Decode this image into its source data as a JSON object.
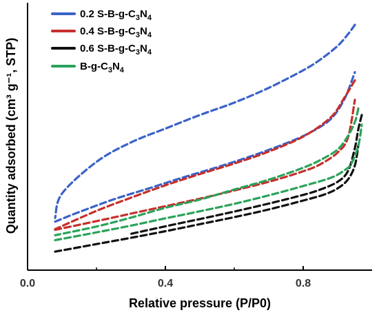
{
  "chart_data": {
    "type": "line",
    "title": "",
    "xlabel": "Relative pressure (P/P0)",
    "ylabel": "Quantity adsorbed (cm³ g⁻¹, STP)",
    "xlim": [
      0.0,
      1.0
    ],
    "ylim": [
      0,
      100
    ],
    "x_ticks": [
      "0.0",
      "0.4",
      "0.8"
    ],
    "y_ticks_labeled": false,
    "grid": false,
    "legend_position": "top-left",
    "line_style": "dashed",
    "series": [
      {
        "name": "0.2 S-B-g-C3N4",
        "label_parts": [
          "0.2 S-B-g-C",
          "3",
          "N",
          "4"
        ],
        "color": "#3a62c8",
        "adsorption": {
          "x": [
            0.08,
            0.15,
            0.25,
            0.35,
            0.45,
            0.55,
            0.65,
            0.75,
            0.82,
            0.88,
            0.92,
            0.95
          ],
          "y": [
            16.0,
            20.1,
            25.5,
            30.1,
            34.8,
            39.2,
            44.0,
            49.4,
            54.0,
            59.8,
            68.4,
            79.8
          ]
        },
        "desorption": {
          "x": [
            0.95,
            0.93,
            0.9,
            0.85,
            0.8,
            0.7,
            0.6,
            0.5,
            0.4,
            0.3,
            0.2,
            0.1,
            0.08
          ],
          "y": [
            100.0,
            96.0,
            91.0,
            85.2,
            80.6,
            73.1,
            66.8,
            61.5,
            55.7,
            49.8,
            41.5,
            28.0,
            17.6
          ]
        }
      },
      {
        "name": "0.4 S-B-g-C3N4",
        "label_parts": [
          "0.4 S-B-g-C",
          "3",
          "N",
          "4"
        ],
        "color": "#c62f2a",
        "adsorption": {
          "x": [
            0.08,
            0.2,
            0.3,
            0.4,
            0.5,
            0.6,
            0.7,
            0.8,
            0.85,
            0.9,
            0.93,
            0.95
          ],
          "y": [
            12.5,
            16.2,
            19.4,
            22.6,
            25.8,
            29.3,
            33.0,
            37.5,
            40.5,
            45.5,
            51.9,
            68.0
          ]
        },
        "desorption": {
          "x": [
            0.95,
            0.92,
            0.88,
            0.8,
            0.7,
            0.6,
            0.5,
            0.4,
            0.3,
            0.2,
            0.08
          ],
          "y": [
            76.3,
            69.0,
            60.5,
            52.3,
            45.9,
            40.8,
            36.3,
            31.5,
            26.2,
            20.6,
            12.8
          ]
        }
      },
      {
        "name": "0.6 S-B-g-C3N4",
        "label_parts": [
          "0.6 S-B-g-C",
          "3",
          "N",
          "4"
        ],
        "color": "#111111",
        "adsorption": {
          "x": [
            0.08,
            0.2,
            0.3,
            0.4,
            0.5,
            0.6,
            0.7,
            0.8,
            0.86,
            0.9,
            0.93,
            0.95,
            0.96
          ],
          "y": [
            3.2,
            6.4,
            9.1,
            11.9,
            14.9,
            17.9,
            21.2,
            25.0,
            27.5,
            30.2,
            34.0,
            40.0,
            48.6
          ]
        },
        "desorption": {
          "x": [
            0.97,
            0.96,
            0.95,
            0.93,
            0.9,
            0.85,
            0.8,
            0.7,
            0.6,
            0.5,
            0.4,
            0.3
          ],
          "y": [
            61.5,
            55.5,
            47.4,
            37.6,
            33.0,
            29.7,
            27.4,
            23.7,
            20.3,
            17.1,
            14.0,
            10.8
          ]
        }
      },
      {
        "name": "B-g-C3N4",
        "label_parts": [
          "B-g-C",
          "3",
          "N",
          "4"
        ],
        "color": "#2aa35a",
        "adsorption": {
          "x": [
            0.08,
            0.2,
            0.3,
            0.4,
            0.5,
            0.6,
            0.7,
            0.8,
            0.88,
            0.92,
            0.94,
            0.96,
            0.97
          ],
          "y": [
            8.1,
            11.4,
            14.3,
            17.4,
            20.4,
            23.6,
            27.2,
            31.2,
            34.7,
            37.9,
            40.8,
            48.4,
            57.4
          ]
        },
        "desorption": {
          "x": [
            0.96,
            0.95,
            0.93,
            0.9,
            0.85,
            0.8,
            0.7,
            0.6,
            0.5,
            0.4,
            0.3,
            0.2,
            0.08
          ],
          "y": [
            64.3,
            58.5,
            52.6,
            46.8,
            42.3,
            39.0,
            33.9,
            29.7,
            25.4,
            21.9,
            17.7,
            13.9,
            10.2
          ]
        }
      }
    ]
  }
}
